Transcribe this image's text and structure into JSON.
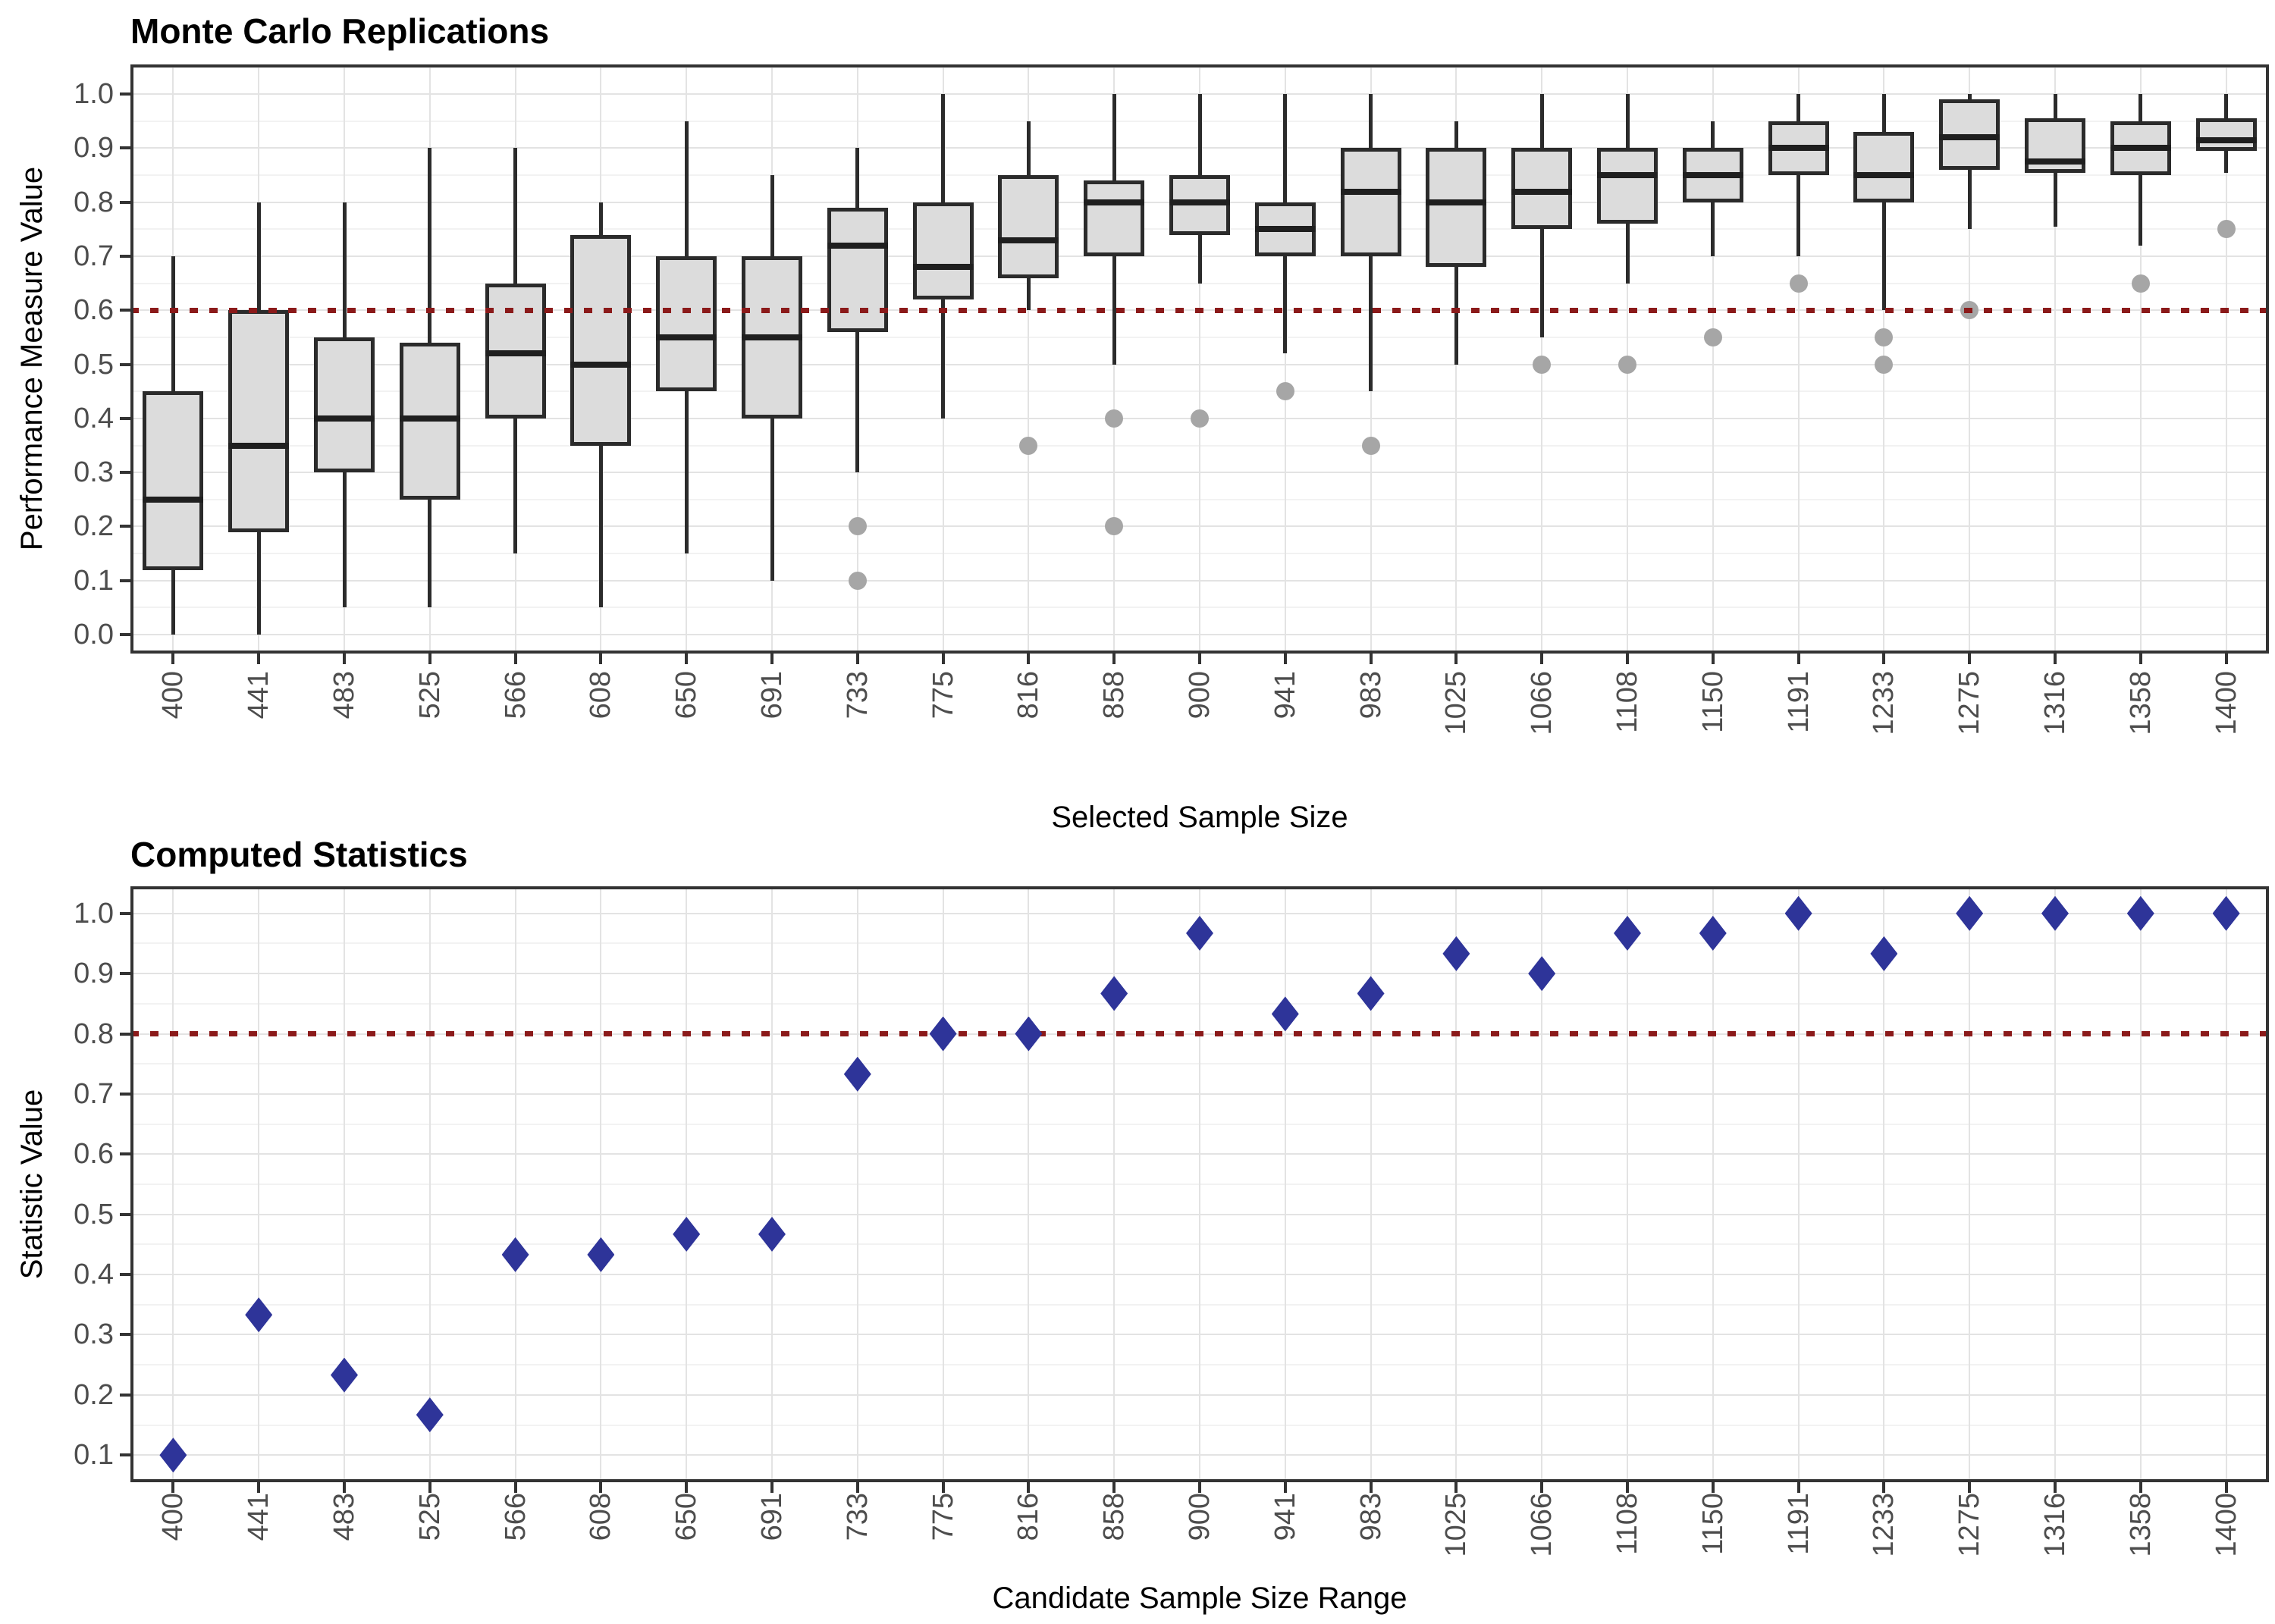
{
  "colors": {
    "background": "#FFFFFF",
    "box_fill": "#DCDCDC",
    "box_border": "#2B2B2B",
    "median": "#1F1F1F",
    "outlier": "#A6A6A6",
    "threshold_line": "#8B1A1A",
    "diamond": "#2E3499",
    "grid_major": "#E3E3E3",
    "grid_minor": "#F2F2F2",
    "panel_border": "#333333",
    "tick_label": "#4D4D4D"
  },
  "chart_data": [
    {
      "type": "boxplot",
      "title": "Monte Carlo Replications",
      "xlabel": "Selected Sample Size",
      "ylabel": "Performance Measure Value",
      "categories": [
        "400",
        "441",
        "483",
        "525",
        "566",
        "608",
        "650",
        "691",
        "733",
        "775",
        "816",
        "858",
        "900",
        "941",
        "983",
        "1025",
        "1066",
        "1108",
        "1150",
        "1191",
        "1233",
        "1275",
        "1316",
        "1358",
        "1400"
      ],
      "y_ticks": [
        "0.0",
        "0.1",
        "0.2",
        "0.3",
        "0.4",
        "0.5",
        "0.6",
        "0.7",
        "0.8",
        "0.9",
        "1.0"
      ],
      "ylim": [
        -0.035,
        1.055
      ],
      "grid": true,
      "legend": "none",
      "threshold": 0.6,
      "boxes": [
        {
          "category": "400",
          "whisker_low": 0.0,
          "q1": 0.12,
          "median": 0.25,
          "q3": 0.45,
          "whisker_high": 0.7,
          "outliers": []
        },
        {
          "category": "441",
          "whisker_low": 0.0,
          "q1": 0.19,
          "median": 0.35,
          "q3": 0.6,
          "whisker_high": 0.8,
          "outliers": []
        },
        {
          "category": "483",
          "whisker_low": 0.05,
          "q1": 0.3,
          "median": 0.4,
          "q3": 0.55,
          "whisker_high": 0.8,
          "outliers": []
        },
        {
          "category": "525",
          "whisker_low": 0.05,
          "q1": 0.25,
          "median": 0.4,
          "q3": 0.54,
          "whisker_high": 0.9,
          "outliers": []
        },
        {
          "category": "566",
          "whisker_low": 0.15,
          "q1": 0.4,
          "median": 0.52,
          "q3": 0.65,
          "whisker_high": 0.9,
          "outliers": []
        },
        {
          "category": "608",
          "whisker_low": 0.05,
          "q1": 0.35,
          "median": 0.5,
          "q3": 0.74,
          "whisker_high": 0.8,
          "outliers": []
        },
        {
          "category": "650",
          "whisker_low": 0.15,
          "q1": 0.45,
          "median": 0.55,
          "q3": 0.7,
          "whisker_high": 0.95,
          "outliers": []
        },
        {
          "category": "691",
          "whisker_low": 0.1,
          "q1": 0.4,
          "median": 0.55,
          "q3": 0.7,
          "whisker_high": 0.85,
          "outliers": []
        },
        {
          "category": "733",
          "whisker_low": 0.3,
          "q1": 0.56,
          "median": 0.72,
          "q3": 0.79,
          "whisker_high": 0.9,
          "outliers": [
            0.2,
            0.1
          ]
        },
        {
          "category": "775",
          "whisker_low": 0.4,
          "q1": 0.62,
          "median": 0.68,
          "q3": 0.8,
          "whisker_high": 1.0,
          "outliers": []
        },
        {
          "category": "816",
          "whisker_low": 0.6,
          "q1": 0.66,
          "median": 0.73,
          "q3": 0.85,
          "whisker_high": 0.95,
          "outliers": [
            0.35
          ]
        },
        {
          "category": "858",
          "whisker_low": 0.5,
          "q1": 0.7,
          "median": 0.8,
          "q3": 0.84,
          "whisker_high": 1.0,
          "outliers": [
            0.4,
            0.2
          ]
        },
        {
          "category": "900",
          "whisker_low": 0.65,
          "q1": 0.74,
          "median": 0.8,
          "q3": 0.85,
          "whisker_high": 1.0,
          "outliers": [
            0.4
          ]
        },
        {
          "category": "941",
          "whisker_low": 0.52,
          "q1": 0.7,
          "median": 0.75,
          "q3": 0.8,
          "whisker_high": 1.0,
          "outliers": [
            0.45
          ]
        },
        {
          "category": "983",
          "whisker_low": 0.45,
          "q1": 0.7,
          "median": 0.82,
          "q3": 0.9,
          "whisker_high": 1.0,
          "outliers": [
            0.35
          ]
        },
        {
          "category": "1025",
          "whisker_low": 0.5,
          "q1": 0.68,
          "median": 0.8,
          "q3": 0.9,
          "whisker_high": 0.95,
          "outliers": []
        },
        {
          "category": "1066",
          "whisker_low": 0.55,
          "q1": 0.75,
          "median": 0.82,
          "q3": 0.9,
          "whisker_high": 1.0,
          "outliers": [
            0.5
          ]
        },
        {
          "category": "1108",
          "whisker_low": 0.65,
          "q1": 0.76,
          "median": 0.85,
          "q3": 0.9,
          "whisker_high": 1.0,
          "outliers": [
            0.5
          ]
        },
        {
          "category": "1150",
          "whisker_low": 0.7,
          "q1": 0.8,
          "median": 0.85,
          "q3": 0.9,
          "whisker_high": 0.95,
          "outliers": [
            0.55
          ]
        },
        {
          "category": "1191",
          "whisker_low": 0.7,
          "q1": 0.85,
          "median": 0.9,
          "q3": 0.95,
          "whisker_high": 1.0,
          "outliers": [
            0.65
          ]
        },
        {
          "category": "1233",
          "whisker_low": 0.6,
          "q1": 0.8,
          "median": 0.85,
          "q3": 0.93,
          "whisker_high": 1.0,
          "outliers": [
            0.55,
            0.5
          ]
        },
        {
          "category": "1275",
          "whisker_low": 0.75,
          "q1": 0.86,
          "median": 0.92,
          "q3": 0.99,
          "whisker_high": 1.0,
          "outliers": [
            0.6
          ]
        },
        {
          "category": "1316",
          "whisker_low": 0.755,
          "q1": 0.855,
          "median": 0.875,
          "q3": 0.955,
          "whisker_high": 1.0,
          "outliers": []
        },
        {
          "category": "1358",
          "whisker_low": 0.72,
          "q1": 0.85,
          "median": 0.9,
          "q3": 0.95,
          "whisker_high": 1.0,
          "outliers": [
            0.65
          ]
        },
        {
          "category": "1400",
          "whisker_low": 0.855,
          "q1": 0.895,
          "median": 0.915,
          "q3": 0.955,
          "whisker_high": 1.0,
          "outliers": [
            0.75
          ]
        }
      ]
    },
    {
      "type": "scatter",
      "title": "Computed Statistics",
      "xlabel": "Candidate Sample Size Range",
      "ylabel": "Statistic Value",
      "marker": "diamond",
      "categories": [
        "400",
        "441",
        "483",
        "525",
        "566",
        "608",
        "650",
        "691",
        "733",
        "775",
        "816",
        "858",
        "900",
        "941",
        "983",
        "1025",
        "1066",
        "1108",
        "1150",
        "1191",
        "1233",
        "1275",
        "1316",
        "1358",
        "1400"
      ],
      "y_ticks": [
        "0.1",
        "0.2",
        "0.3",
        "0.4",
        "0.5",
        "0.6",
        "0.7",
        "0.8",
        "0.9",
        "1.0"
      ],
      "ylim": [
        0.055,
        1.045
      ],
      "grid": true,
      "legend": "none",
      "threshold": 0.8,
      "values": [
        0.1,
        0.333,
        0.233,
        0.167,
        0.433,
        0.433,
        0.467,
        0.467,
        0.733,
        0.8,
        0.8,
        0.867,
        0.967,
        0.833,
        0.867,
        0.933,
        0.9,
        0.967,
        0.967,
        1.0,
        0.933,
        1.0,
        1.0,
        1.0,
        1.0
      ]
    }
  ]
}
